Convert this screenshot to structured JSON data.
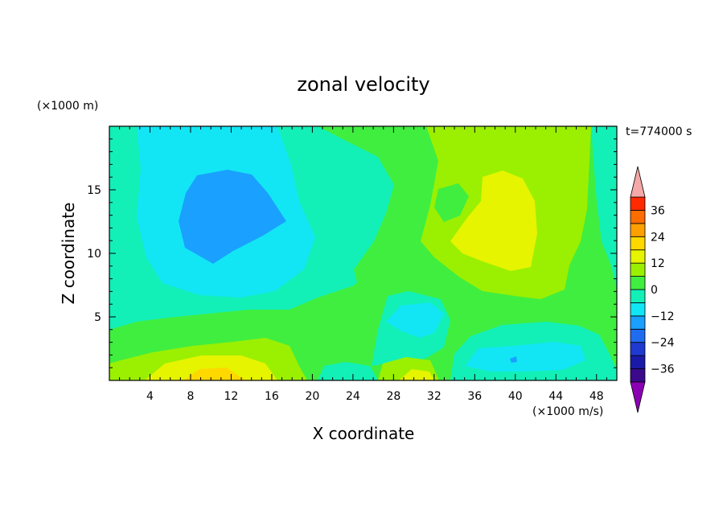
{
  "chart_data": {
    "type": "heatmap",
    "title": "zonal velocity",
    "xlabel": "X coordinate",
    "ylabel": "Z coordinate",
    "y_unit_label": "(×1000 m)",
    "colorbar_unit_label": "(×1000 m/s)",
    "time_label": "t=774000 s",
    "xlim": [
      0,
      50
    ],
    "ylim": [
      0,
      20
    ],
    "x_ticks": [
      4,
      8,
      12,
      16,
      20,
      24,
      28,
      32,
      36,
      40,
      44,
      48
    ],
    "x_tick_labels": [
      "4",
      "8",
      "12",
      "16",
      "20",
      "24",
      "28",
      "32",
      "36",
      "40",
      "44",
      "48"
    ],
    "y_ticks": [
      5,
      10,
      15
    ],
    "y_tick_labels": [
      "5",
      "10",
      "15"
    ],
    "colorbar": {
      "levels": [
        -42,
        -36,
        -30,
        -24,
        -18,
        -12,
        -6,
        0,
        6,
        12,
        18,
        24,
        30,
        36,
        42
      ],
      "colors": [
        "#3a0a8a",
        "#1a1aa8",
        "#1f3ad0",
        "#1f6cf0",
        "#1aa0ff",
        "#12e6f4",
        "#12f0b8",
        "#40ee40",
        "#9af000",
        "#e6f400",
        "#ffd800",
        "#ffa000",
        "#ff6c00",
        "#ff2a00"
      ],
      "under_color": "#8c00b4",
      "over_color": "#f4a8a8",
      "tick_values": [
        -36,
        -24,
        -12,
        0,
        12,
        24,
        36
      ],
      "tick_labels": [
        "−36",
        "−24",
        "−12",
        "0",
        "12",
        "24",
        "36"
      ]
    }
  }
}
